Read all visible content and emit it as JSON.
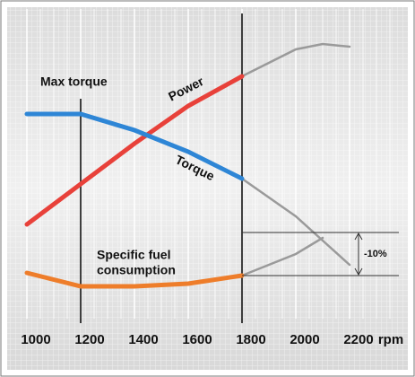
{
  "chart_data": {
    "type": "line",
    "x": [
      1000,
      1200,
      1400,
      1600,
      1800,
      2000,
      2100,
      2200
    ],
    "xlim": [
      1000,
      2200
    ],
    "xticks": [
      1000,
      1200,
      1400,
      1600,
      1800,
      2000,
      2200
    ],
    "x_unit": "rpm",
    "ylim": [
      0,
      100
    ],
    "beyond_x": 1800,
    "beyond_color": "#9a9a9a",
    "markers": [
      1200,
      1800
    ],
    "marker_label": "Max torque",
    "grid": true,
    "series": [
      {
        "name": "Power",
        "color": "#e8413a",
        "values": [
          30,
          45,
          60,
          74,
          85,
          95,
          97,
          96
        ]
      },
      {
        "name": "Torque",
        "color": "#2e86d6",
        "values": [
          71,
          71,
          65,
          57,
          47,
          33,
          24,
          15
        ]
      },
      {
        "name": [
          "Specific fuel",
          "consumption"
        ],
        "color": "#ee7d2a",
        "values": [
          12,
          7,
          7,
          8,
          11,
          19,
          25,
          null
        ]
      }
    ],
    "bracket": {
      "label": "-10%",
      "values": [
        27,
        11
      ]
    }
  }
}
